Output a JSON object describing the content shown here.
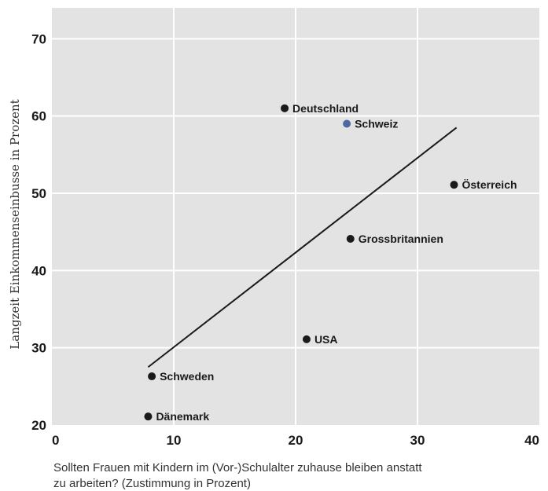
{
  "chart_data": {
    "type": "scatter",
    "title": "",
    "xlabel_lines": [
      "Sollten Frauen mit Kindern im (Vor-)Schulalter zuhause bleiben anstatt",
      "zu arbeiten? (Zustimmung in Prozent)"
    ],
    "ylabel": "Langzeit Einkommenseinbusse in Prozent",
    "xlim": [
      0,
      40
    ],
    "ylim": [
      20,
      74
    ],
    "xticks": [
      0,
      10,
      20,
      30,
      40
    ],
    "yticks": [
      20,
      30,
      40,
      50,
      60,
      70
    ],
    "grid": true,
    "colors": {
      "background": "#e3e3e3",
      "grid": "#ffffff",
      "point": "#1a1a1a",
      "highlight": "#4d6aa0",
      "line": "#1a1a1a"
    },
    "points": [
      {
        "label": "Deutschland",
        "x": 19.1,
        "y": 61.0,
        "highlight": false
      },
      {
        "label": "Schweiz",
        "x": 24.2,
        "y": 59.0,
        "highlight": true
      },
      {
        "label": "Österreich",
        "x": 33.0,
        "y": 51.1,
        "highlight": false
      },
      {
        "label": "Grossbritannien",
        "x": 24.5,
        "y": 44.1,
        "highlight": false
      },
      {
        "label": "USA",
        "x": 20.9,
        "y": 31.1,
        "highlight": false
      },
      {
        "label": "Schweden",
        "x": 8.2,
        "y": 26.3,
        "highlight": false
      },
      {
        "label": "Dänemark",
        "x": 7.9,
        "y": 21.1,
        "highlight": false
      }
    ],
    "trend_line": {
      "x": [
        7.9,
        33.2
      ],
      "y": [
        27.5,
        58.5
      ]
    }
  }
}
